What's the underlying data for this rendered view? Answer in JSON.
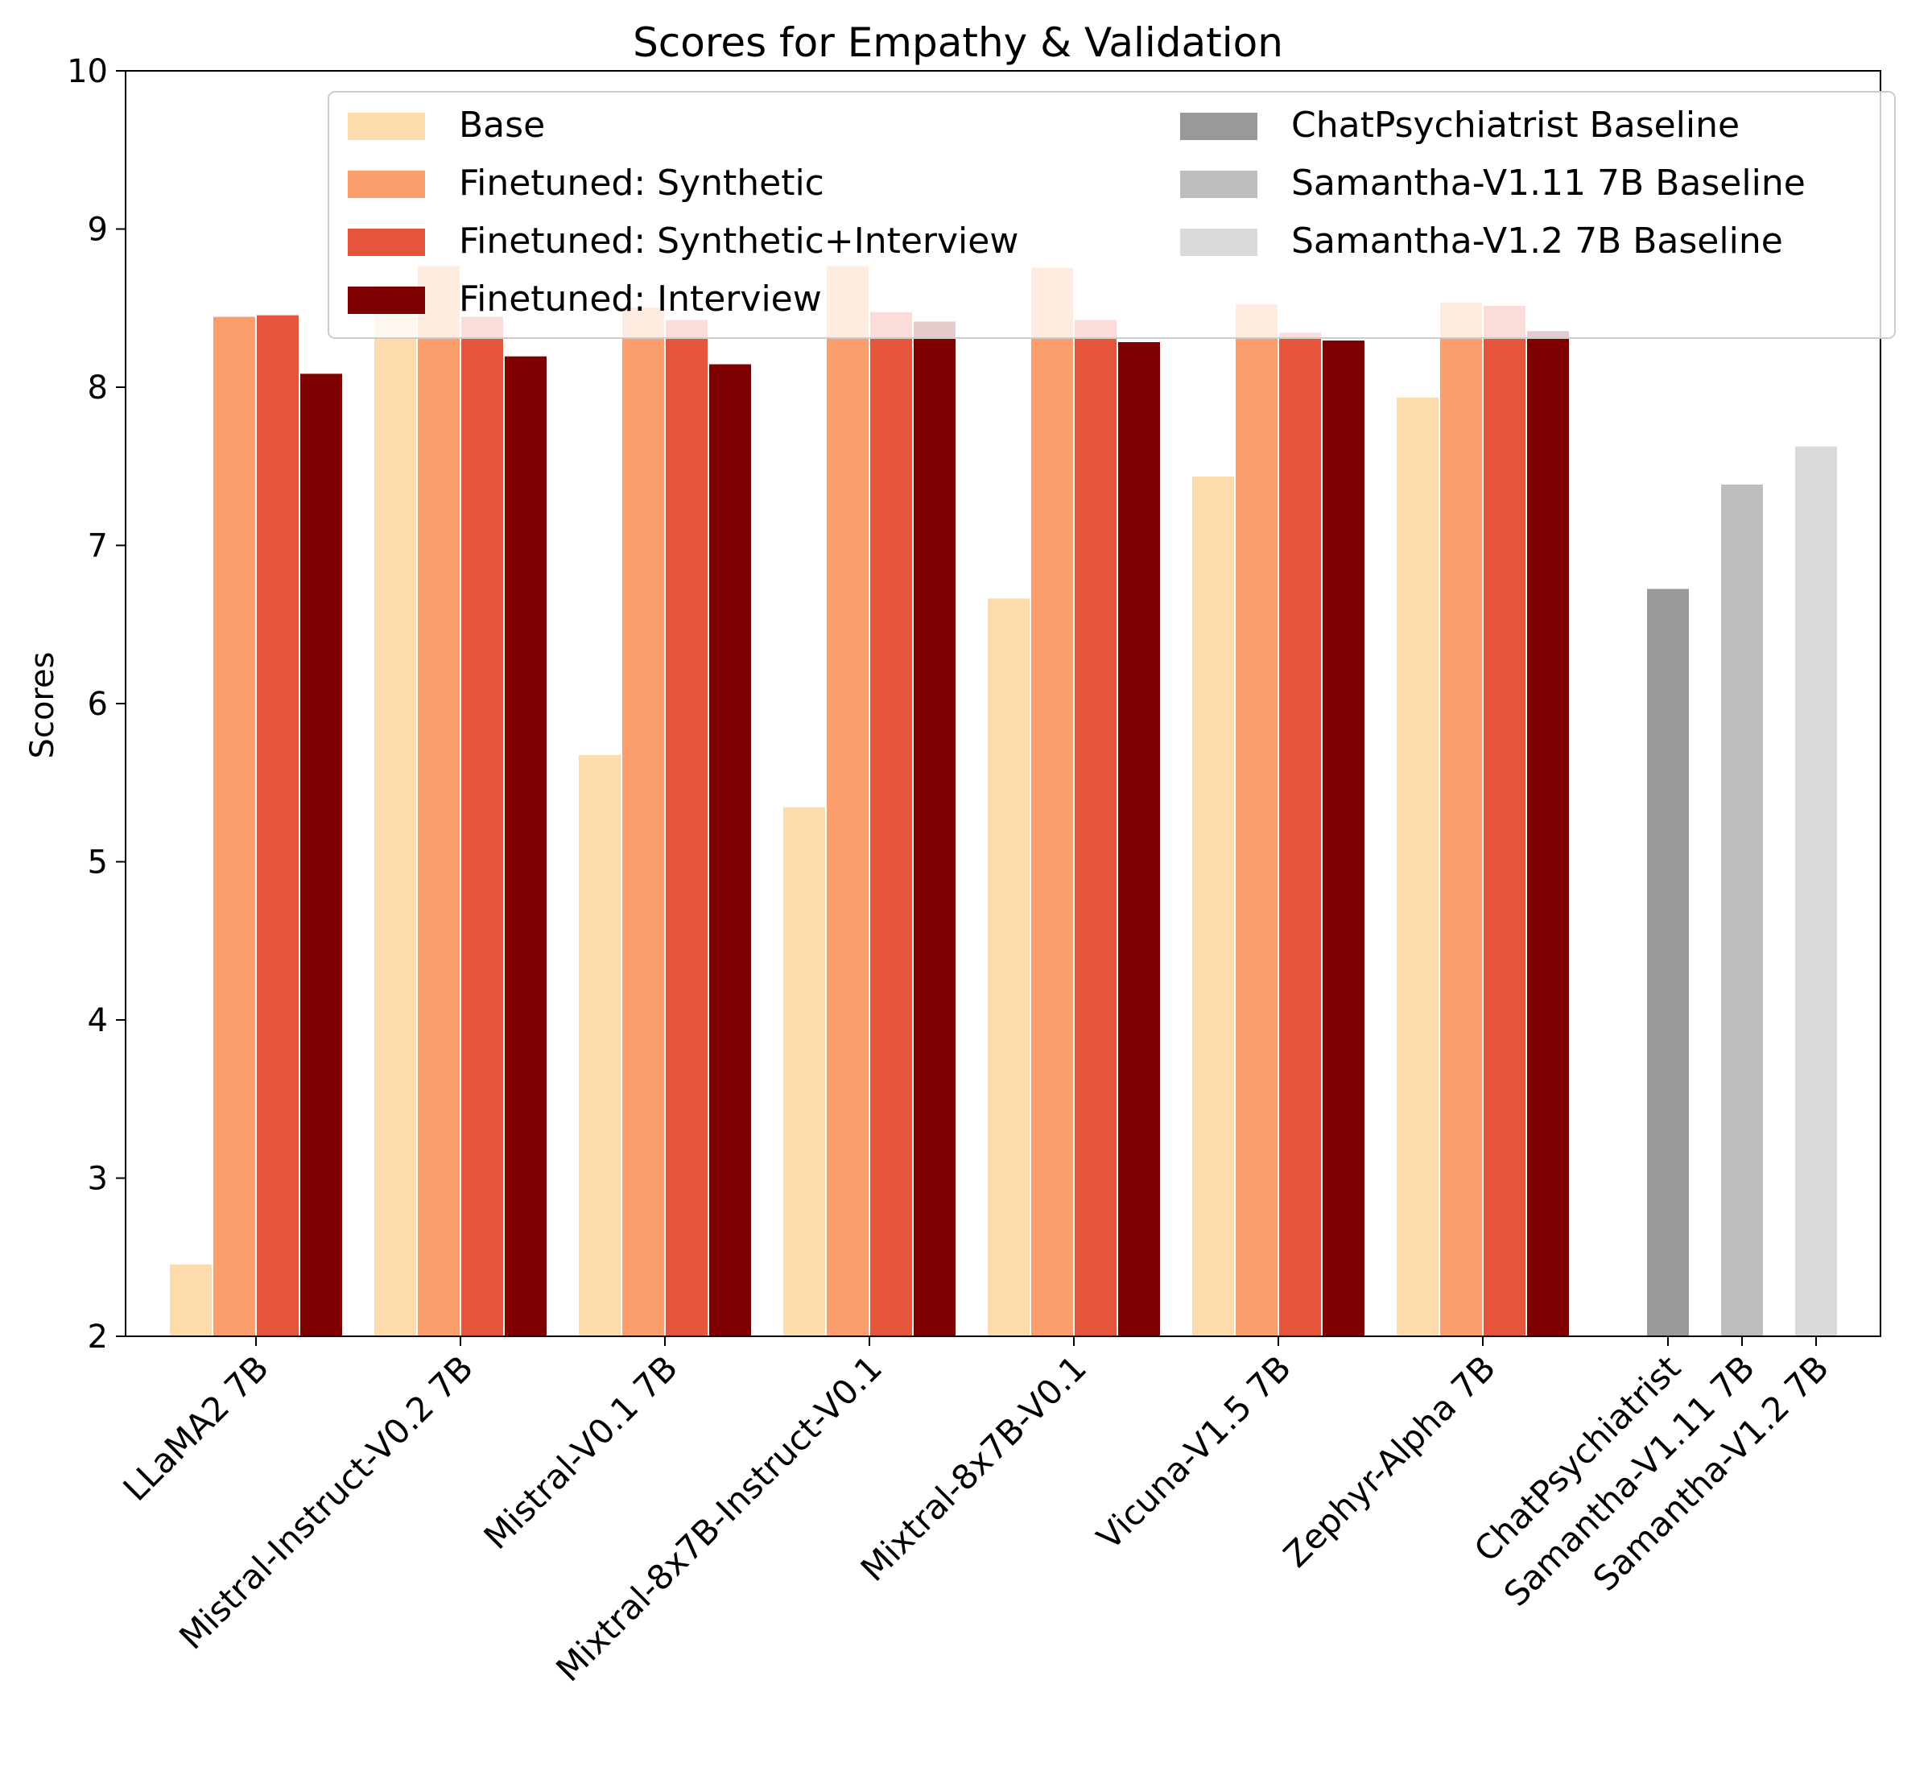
{
  "chart_data": {
    "type": "bar",
    "title": "Scores for Empathy & Validation",
    "xlabel": "",
    "ylabel": "Scores",
    "ylim": [
      2,
      10
    ],
    "yticks": [
      "2",
      "3",
      "4",
      "5",
      "6",
      "7",
      "8",
      "9",
      "10"
    ],
    "grid": false,
    "legend_position": "top-right",
    "categories": [
      "LLaMA2 7B",
      "Mistral-Instruct-V0.2 7B",
      "Mistral-V0.1 7B",
      "Mixtral-8x7B-Instruct-V0.1",
      "Mixtral-8x7B-V0.1",
      "Vicuna-V1.5 7B",
      "Zephyr-Alpha 7B",
      "ChatPsychiatrist",
      "Samantha-V1.11 7B",
      "Samantha-V1.2 7B"
    ],
    "series": [
      {
        "name": "Base",
        "color": "#fddbad",
        "values": [
          2.46,
          8.65,
          5.68,
          5.35,
          6.67,
          7.44,
          7.94,
          null,
          null,
          null
        ]
      },
      {
        "name": "Finetuned: Synthetic",
        "color": "#fc9e6c",
        "values": [
          8.45,
          8.77,
          8.51,
          8.77,
          8.76,
          8.53,
          8.54,
          null,
          null,
          null
        ]
      },
      {
        "name": "Finetuned: Synthetic+Interview",
        "color": "#e5553c",
        "values": [
          8.46,
          8.45,
          8.43,
          8.48,
          8.43,
          8.35,
          8.52,
          null,
          null,
          null
        ]
      },
      {
        "name": "Finetuned: Interview",
        "color": "#7f0000",
        "values": [
          8.09,
          8.2,
          8.15,
          8.42,
          8.29,
          8.3,
          8.36,
          null,
          null,
          null
        ]
      },
      {
        "name": "ChatPsychiatrist Baseline",
        "color": "#999999",
        "values": [
          null,
          null,
          null,
          null,
          null,
          null,
          null,
          6.73,
          null,
          null
        ]
      },
      {
        "name": "Samantha-V1.11 7B Baseline",
        "color": "#bdbdbd",
        "values": [
          null,
          null,
          null,
          null,
          null,
          null,
          null,
          null,
          7.39,
          null
        ]
      },
      {
        "name": "Samantha-V1.2 7B Baseline",
        "color": "#d9d9d9",
        "values": [
          null,
          null,
          null,
          null,
          null,
          null,
          null,
          null,
          null,
          7.63
        ]
      }
    ]
  }
}
